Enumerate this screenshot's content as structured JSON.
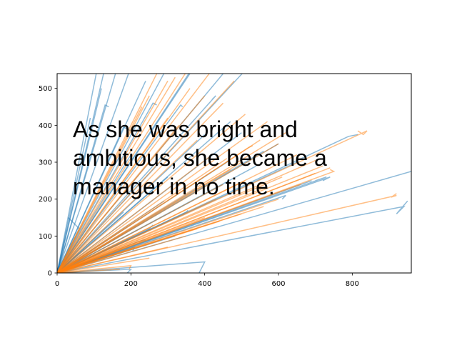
{
  "chart_data": {
    "type": "line",
    "title": "",
    "xlabel": "",
    "ylabel": "",
    "xlim": [
      0,
      960
    ],
    "ylim": [
      0,
      540
    ],
    "x_ticks": [
      0,
      200,
      400,
      600,
      800
    ],
    "y_ticks": [
      0,
      100,
      200,
      300,
      400,
      500
    ],
    "grid": false,
    "legend": "none",
    "series": [
      {
        "color": "#1f77b4",
        "alpha": 0.5,
        "paths": [
          [
            [
              0,
              0
            ],
            [
              110,
              560
            ],
            [
              95,
              590
            ]
          ],
          [
            [
              0,
              0
            ],
            [
              140,
              600
            ]
          ],
          [
            [
              0,
              0
            ],
            [
              170,
              580
            ]
          ],
          [
            [
              0,
              0
            ],
            [
              215,
              600
            ],
            [
              230,
              590
            ]
          ],
          [
            [
              0,
              0
            ],
            [
              130,
              455
            ],
            [
              140,
              450
            ]
          ],
          [
            [
              0,
              0
            ],
            [
              300,
              560
            ]
          ],
          [
            [
              0,
              0
            ],
            [
              370,
              560
            ]
          ],
          [
            [
              0,
              0
            ],
            [
              450,
              540
            ]
          ],
          [
            [
              0,
              0
            ],
            [
              60,
              120
            ],
            [
              30,
              150
            ]
          ],
          [
            [
              0,
              0
            ],
            [
              520,
              560
            ]
          ],
          [
            [
              0,
              0
            ],
            [
              790,
              370
            ],
            [
              815,
              375
            ]
          ],
          [
            [
              0,
              0
            ],
            [
              940,
              180
            ],
            [
              920,
              160
            ],
            [
              950,
              195
            ]
          ],
          [
            [
              0,
              0
            ],
            [
              960,
              275
            ]
          ],
          [
            [
              0,
              0
            ],
            [
              730,
              260
            ],
            [
              700,
              250
            ]
          ],
          [
            [
              0,
              0
            ],
            [
              620,
              210
            ],
            [
              610,
              200
            ]
          ],
          [
            [
              0,
              0
            ],
            [
              180,
              395
            ],
            [
              200,
              385
            ]
          ],
          [
            [
              0,
              0
            ],
            [
              260,
              460
            ],
            [
              270,
              455
            ]
          ],
          [
            [
              0,
              0
            ],
            [
              335,
              455
            ],
            [
              340,
              450
            ]
          ],
          [
            [
              0,
              0
            ],
            [
              470,
              410
            ]
          ],
          [
            [
              0,
              0
            ],
            [
              400,
              375
            ]
          ],
          [
            [
              0,
              0
            ],
            [
              460,
              300
            ],
            [
              470,
              310
            ]
          ],
          [
            [
              0,
              0
            ],
            [
              380,
              230
            ]
          ],
          [
            [
              0,
              0
            ],
            [
              650,
              300
            ]
          ],
          [
            [
              0,
              0
            ],
            [
              560,
              330
            ]
          ],
          [
            [
              0,
              0
            ],
            [
              250,
              120
            ],
            [
              260,
              130
            ]
          ],
          [
            [
              0,
              0
            ],
            [
              220,
              85
            ],
            [
              240,
              90
            ]
          ],
          [
            [
              0,
              0
            ],
            [
              210,
              70
            ],
            [
              205,
              60
            ]
          ],
          [
            [
              0,
              0
            ],
            [
              290,
              195
            ]
          ],
          [
            [
              0,
              0
            ],
            [
              180,
              165
            ]
          ],
          [
            [
              0,
              0
            ],
            [
              350,
              165
            ],
            [
              355,
              170
            ]
          ],
          [
            [
              0,
              0
            ],
            [
              400,
              30
            ],
            [
              380,
              -10
            ]
          ],
          [
            [
              0,
              0
            ],
            [
              300,
              260
            ]
          ],
          [
            [
              0,
              0
            ],
            [
              200,
              320
            ]
          ],
          [
            [
              0,
              0
            ],
            [
              240,
              520
            ]
          ],
          [
            [
              0,
              0
            ],
            [
              500,
              380
            ]
          ],
          [
            [
              0,
              0
            ],
            [
              540,
              290
            ]
          ],
          [
            [
              0,
              0
            ],
            [
              690,
              250
            ]
          ],
          [
            [
              0,
              0
            ],
            [
              740,
              260
            ],
            [
              720,
              250
            ]
          ],
          [
            [
              0,
              0
            ],
            [
              430,
              480
            ],
            [
              420,
              470
            ]
          ],
          [
            [
              0,
              0
            ],
            [
              360,
              540
            ]
          ],
          [
            [
              0,
              0
            ],
            [
              120,
              500
            ]
          ],
          [
            [
              0,
              0
            ],
            [
              90,
              420
            ]
          ],
          [
            [
              0,
              0
            ],
            [
              200,
              10
            ],
            [
              190,
              0
            ]
          ],
          [
            [
              0,
              0
            ],
            [
              450,
              240
            ]
          ],
          [
            [
              0,
              0
            ],
            [
              600,
              350
            ]
          ],
          [
            [
              0,
              0
            ],
            [
              320,
              100
            ]
          ]
        ]
      },
      {
        "color": "#ff7f0e",
        "alpha": 0.5,
        "paths": [
          [
            [
              0,
              0
            ],
            [
              840,
              385
            ],
            [
              830,
              375
            ],
            [
              815,
              385
            ]
          ],
          [
            [
              0,
              0
            ],
            [
              920,
              210
            ],
            [
              905,
              205
            ],
            [
              920,
              215
            ]
          ],
          [
            [
              0,
              0
            ],
            [
              750,
              275
            ],
            [
              740,
              280
            ]
          ],
          [
            [
              0,
              0
            ],
            [
              720,
              290
            ]
          ],
          [
            [
              0,
              0
            ],
            [
              690,
              300
            ],
            [
              700,
              305
            ]
          ],
          [
            [
              0,
              0
            ],
            [
              650,
              320
            ]
          ],
          [
            [
              0,
              0
            ],
            [
              600,
              350
            ]
          ],
          [
            [
              0,
              0
            ],
            [
              550,
              360
            ]
          ],
          [
            [
              0,
              0
            ],
            [
              520,
              340
            ],
            [
              530,
              345
            ]
          ],
          [
            [
              0,
              0
            ],
            [
              500,
              300
            ]
          ],
          [
            [
              0,
              0
            ],
            [
              470,
              280
            ]
          ],
          [
            [
              0,
              0
            ],
            [
              450,
              240
            ]
          ],
          [
            [
              0,
              0
            ],
            [
              430,
              200
            ]
          ],
          [
            [
              0,
              0
            ],
            [
              400,
              150
            ]
          ],
          [
            [
              0,
              0
            ],
            [
              350,
              100
            ]
          ],
          [
            [
              0,
              0
            ],
            [
              300,
              70
            ]
          ],
          [
            [
              0,
              0
            ],
            [
              250,
              40
            ]
          ],
          [
            [
              0,
              0
            ],
            [
              200,
              20
            ],
            [
              195,
              10
            ]
          ],
          [
            [
              0,
              0
            ],
            [
              170,
              10
            ]
          ],
          [
            [
              0,
              0
            ],
            [
              480,
              520
            ]
          ],
          [
            [
              0,
              0
            ],
            [
              420,
              550
            ]
          ],
          [
            [
              0,
              0
            ],
            [
              360,
              560
            ]
          ],
          [
            [
              0,
              0
            ],
            [
              300,
              520
            ]
          ],
          [
            [
              0,
              0
            ],
            [
              250,
              480
            ]
          ],
          [
            [
              0,
              0
            ],
            [
              230,
              450
            ]
          ],
          [
            [
              0,
              0
            ],
            [
              300,
              420
            ]
          ],
          [
            [
              0,
              0
            ],
            [
              330,
              400
            ]
          ],
          [
            [
              0,
              0
            ],
            [
              380,
              360
            ]
          ],
          [
            [
              0,
              0
            ],
            [
              420,
              320
            ]
          ],
          [
            [
              0,
              0
            ],
            [
              460,
              310
            ]
          ],
          [
            [
              0,
              0
            ],
            [
              510,
              250
            ]
          ],
          [
            [
              0,
              0
            ],
            [
              560,
              230
            ]
          ],
          [
            [
              0,
              0
            ],
            [
              610,
              260
            ]
          ],
          [
            [
              0,
              0
            ],
            [
              660,
              240
            ]
          ],
          [
            [
              0,
              0
            ],
            [
              700,
              270
            ]
          ],
          [
            [
              0,
              0
            ],
            [
              740,
              285
            ]
          ],
          [
            [
              0,
              0
            ],
            [
              620,
              380
            ]
          ],
          [
            [
              0,
              0
            ],
            [
              570,
              410
            ]
          ],
          [
            [
              0,
              0
            ],
            [
              510,
              430
            ]
          ],
          [
            [
              0,
              0
            ],
            [
              450,
              460
            ]
          ],
          [
            [
              0,
              0
            ],
            [
              400,
              480
            ]
          ],
          [
            [
              0,
              0
            ],
            [
              360,
              500
            ]
          ],
          [
            [
              0,
              0
            ],
            [
              320,
              530
            ]
          ],
          [
            [
              0,
              0
            ],
            [
              280,
              560
            ]
          ],
          [
            [
              0,
              0
            ],
            [
              600,
              200
            ]
          ],
          [
            [
              0,
              0
            ],
            [
              560,
              180
            ]
          ],
          [
            [
              0,
              0
            ],
            [
              500,
              160
            ]
          ],
          [
            [
              0,
              0
            ],
            [
              440,
              140
            ]
          ],
          [
            [
              0,
              0
            ],
            [
              380,
              120
            ]
          ]
        ]
      }
    ],
    "annotation": "As she was bright and ambitious, she became a manager in no time."
  },
  "overlay_lines": [
    "As she was bright and",
    "ambitious, she became a",
    "manager in no time."
  ]
}
